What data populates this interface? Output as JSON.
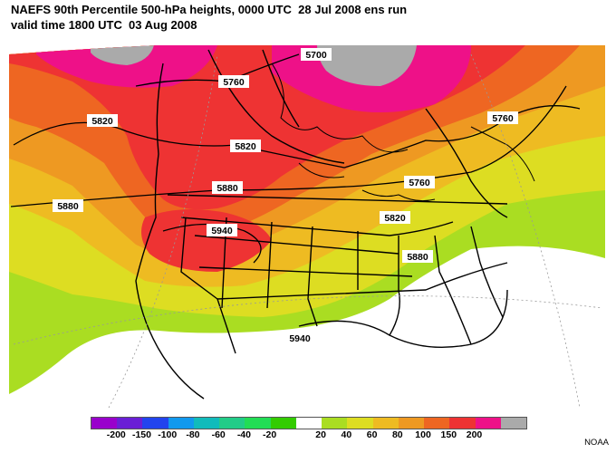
{
  "title": {
    "line1": "NAEFS 90th Percentile 500-hPa heights, 0000 UTC  28 Jul 2008 ens run",
    "line2": "valid time 1800 UTC  03 Aug 2008"
  },
  "contour_labels": [
    "5700",
    "5760",
    "5760",
    "5760",
    "5820",
    "5820",
    "5820",
    "5880",
    "5880",
    "5880",
    "5940",
    "5940"
  ],
  "legend": {
    "colors": [
      "#9900cc",
      "#6a1fd6",
      "#2244ee",
      "#1199ee",
      "#11bbbb",
      "#22cc88",
      "#22dd55",
      "#33cc00",
      "#ffffff",
      "#aadd22",
      "#dddd22",
      "#eebb22",
      "#ee9922",
      "#ee6622",
      "#ee3333",
      "#ee1188",
      "#aaaaaa"
    ],
    "ticks": [
      "-200",
      "-150",
      "-100",
      "-80",
      "-60",
      "-40",
      "-20",
      "20",
      "40",
      "60",
      "80",
      "100",
      "150",
      "200"
    ]
  },
  "credit": "NOAA"
}
